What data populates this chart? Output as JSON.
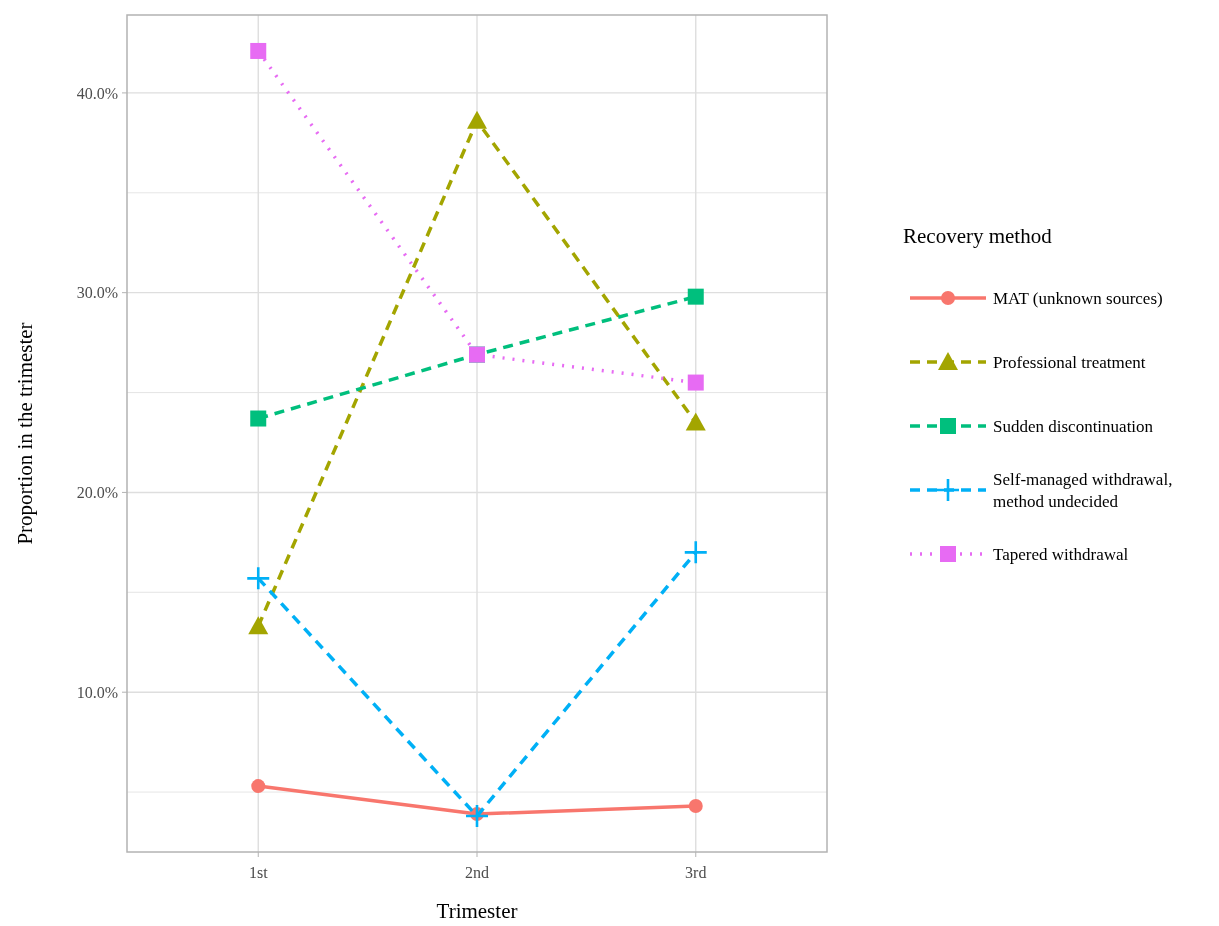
{
  "chart_data": {
    "type": "line",
    "xlabel": "Trimester",
    "ylabel": "Proportion in the trimester",
    "legend_title": "Recovery method",
    "categories": [
      "1st",
      "2nd",
      "3rd"
    ],
    "ylim": [
      2.0,
      43.9
    ],
    "yticks": [
      {
        "value": 5,
        "label": null
      },
      {
        "value": 10,
        "label": "10.0%"
      },
      {
        "value": 15,
        "label": null
      },
      {
        "value": 20,
        "label": "20.0%"
      },
      {
        "value": 25,
        "label": null
      },
      {
        "value": 30,
        "label": "30.0%"
      },
      {
        "value": 35,
        "label": null
      },
      {
        "value": 40,
        "label": "40.0%"
      }
    ],
    "grid": true,
    "legend": "right",
    "series": [
      {
        "name": "MAT (unknown sources)",
        "color": "#f8766d",
        "values": [
          5.3,
          3.9,
          4.3
        ],
        "marker": "circle",
        "line_style": "solid"
      },
      {
        "name": "Professional treatment",
        "color": "#a3a500",
        "values": [
          13.3,
          38.6,
          23.5
        ],
        "marker": "triangle",
        "line_style": "dashed"
      },
      {
        "name": "Sudden discontinuation",
        "color": "#00bf7d",
        "values": [
          23.7,
          26.9,
          29.8
        ],
        "marker": "square",
        "line_style": "dashed"
      },
      {
        "name": "Self-managed withdrawal,\nmethod undecided",
        "color": "#00b0f6",
        "values": [
          15.7,
          3.8,
          17.0
        ],
        "marker": "cross",
        "line_style": "dashed"
      },
      {
        "name": "Tapered withdrawal",
        "color": "#e76bf3",
        "values": [
          42.1,
          26.9,
          25.5
        ],
        "marker": "square",
        "line_style": "dotted"
      }
    ]
  }
}
